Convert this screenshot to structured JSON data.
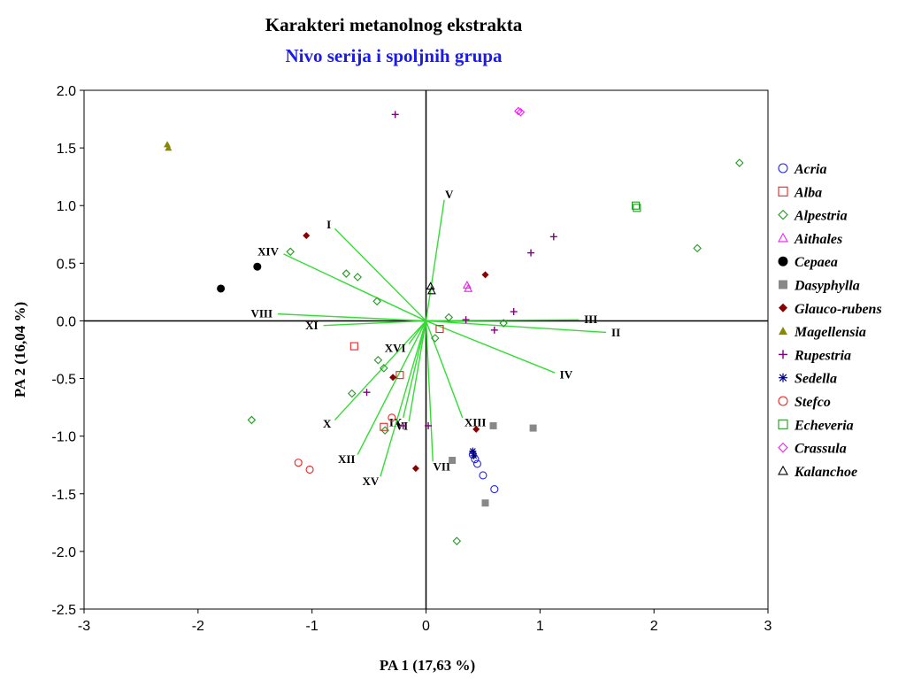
{
  "chart_data": {
    "type": "scatter",
    "title": "Karakteri metanolnog ekstrakta",
    "subtitle": "Nivo serija i spoljnih grupa",
    "xlabel": "PA 1 (17,63 %)",
    "ylabel": "PA 2 (16,04 %)",
    "xlim": [
      -3,
      3
    ],
    "ylim": [
      -2.5,
      2.0
    ],
    "x_ticks": [
      -3,
      -2,
      -1,
      0,
      1,
      2,
      3
    ],
    "y_ticks": [
      2.0,
      1.5,
      1.0,
      0.5,
      0.0,
      -0.5,
      -1.0,
      -1.5,
      -2.0,
      -2.5
    ],
    "x_tick_labels": [
      "-3",
      "-2",
      "-1",
      "0",
      "1",
      "2",
      "3"
    ],
    "y_tick_labels": [
      "2.0",
      "1.5",
      "1.0",
      "0.5",
      "0.0",
      "-0.5",
      "-1.0",
      "-1.5",
      "-2.0",
      "-2.5"
    ],
    "grid": false,
    "zero_lines": true,
    "legend_position": "right",
    "vector_color": "#33dd33",
    "series": [
      {
        "name": "Acria",
        "marker": "circle-open",
        "color": "#2222ee",
        "points": [
          [
            0.45,
            -1.24
          ],
          [
            0.5,
            -1.34
          ],
          [
            0.6,
            -1.46
          ],
          [
            0.41,
            -1.16
          ],
          [
            0.43,
            -1.2
          ]
        ]
      },
      {
        "name": "Alba",
        "marker": "square-open",
        "color": "#ee2222",
        "points": [
          [
            -0.63,
            -0.22
          ],
          [
            0.12,
            -0.07
          ],
          [
            -0.23,
            -0.47
          ],
          [
            -0.37,
            -0.92
          ]
        ]
      },
      {
        "name": "Alpestria",
        "marker": "diamond-open",
        "color": "#229922",
        "points": [
          [
            -1.19,
            0.6
          ],
          [
            -0.7,
            0.41
          ],
          [
            -0.6,
            0.38
          ],
          [
            -0.43,
            0.17
          ],
          [
            0.2,
            0.03
          ],
          [
            0.68,
            -0.02
          ],
          [
            0.08,
            -0.15
          ],
          [
            -0.42,
            -0.34
          ],
          [
            -0.37,
            -0.41
          ],
          [
            -0.65,
            -0.63
          ],
          [
            -0.36,
            -0.95
          ],
          [
            -1.53,
            -0.86
          ],
          [
            0.27,
            -1.91
          ],
          [
            2.38,
            0.63
          ],
          [
            2.75,
            1.37
          ]
        ]
      },
      {
        "name": "Aithales",
        "marker": "triangle-open",
        "color": "#ee22ee",
        "points": [
          [
            0.36,
            0.31
          ],
          [
            0.37,
            0.28
          ]
        ]
      },
      {
        "name": "Cepaea",
        "marker": "circle-filled",
        "color": "#000000",
        "points": [
          [
            -1.8,
            0.28
          ],
          [
            -1.48,
            0.47
          ]
        ]
      },
      {
        "name": "Dasyphylla",
        "marker": "square-filled",
        "color": "#888888",
        "points": [
          [
            0.59,
            -0.91
          ],
          [
            0.94,
            -0.93
          ],
          [
            0.23,
            -1.21
          ],
          [
            0.52,
            -1.58
          ]
        ]
      },
      {
        "name": "Glauco-rubens",
        "marker": "diamond-filled",
        "color": "#880000",
        "points": [
          [
            -1.05,
            0.74
          ],
          [
            0.52,
            0.4
          ],
          [
            -0.29,
            -0.49
          ],
          [
            0.44,
            -0.94
          ],
          [
            -0.09,
            -1.28
          ]
        ]
      },
      {
        "name": "Magellensia",
        "marker": "triangle-filled",
        "color": "#888800",
        "points": [
          [
            -2.27,
            1.53
          ],
          [
            -2.26,
            1.5
          ]
        ]
      },
      {
        "name": "Rupestria",
        "marker": "plus",
        "color": "#800080",
        "points": [
          [
            -0.27,
            1.79
          ],
          [
            0.92,
            0.59
          ],
          [
            1.12,
            0.73
          ],
          [
            0.77,
            0.08
          ],
          [
            0.35,
            0.01
          ],
          [
            0.6,
            -0.08
          ],
          [
            -0.52,
            -0.62
          ],
          [
            -0.2,
            -0.91
          ],
          [
            0.02,
            -0.91
          ]
        ]
      },
      {
        "name": "Sedella",
        "marker": "star",
        "color": "#000080",
        "points": [
          [
            0.41,
            -1.13
          ],
          [
            0.42,
            -1.17
          ]
        ]
      },
      {
        "name": "Stefco",
        "marker": "circle-open",
        "color": "#ee2222",
        "points": [
          [
            -1.12,
            -1.23
          ],
          [
            -1.02,
            -1.29
          ],
          [
            -0.3,
            -0.84
          ]
        ]
      },
      {
        "name": "Echeveria",
        "marker": "square-open",
        "color": "#229922",
        "points": [
          [
            1.84,
            1.0
          ],
          [
            1.85,
            0.98
          ]
        ]
      },
      {
        "name": "Crassula",
        "marker": "diamond-open",
        "color": "#ee22ee",
        "points": [
          [
            0.81,
            1.82
          ],
          [
            0.83,
            1.81
          ]
        ]
      },
      {
        "name": "Kalanchoe",
        "marker": "triangle-open",
        "color": "#000000",
        "points": [
          [
            0.04,
            0.3
          ],
          [
            0.05,
            0.26
          ]
        ]
      }
    ],
    "vectors": [
      {
        "label": "I",
        "x": -0.8,
        "y": 0.8
      },
      {
        "label": "II",
        "x": 1.58,
        "y": -0.1
      },
      {
        "label": "III",
        "x": 1.34,
        "y": 0.01
      },
      {
        "label": "IV",
        "x": 1.13,
        "y": -0.45
      },
      {
        "label": "V",
        "x": 0.16,
        "y": 1.05
      },
      {
        "label": "VI",
        "x": -0.15,
        "y": -0.87
      },
      {
        "label": "VII",
        "x": 0.06,
        "y": -1.22
      },
      {
        "label": "VIII",
        "x": -1.3,
        "y": 0.06
      },
      {
        "label": "IX",
        "x": -0.2,
        "y": -0.84
      },
      {
        "label": "X",
        "x": -0.8,
        "y": -0.86
      },
      {
        "label": "XI",
        "x": -0.9,
        "y": -0.04
      },
      {
        "label": "XII",
        "x": -0.6,
        "y": -1.16
      },
      {
        "label": "XIII",
        "x": 0.32,
        "y": -0.84
      },
      {
        "label": "XIV",
        "x": -1.25,
        "y": 0.58
      },
      {
        "label": "XV",
        "x": -0.4,
        "y": -1.35
      },
      {
        "label": "XVI",
        "x": -0.15,
        "y": -0.2
      }
    ]
  }
}
